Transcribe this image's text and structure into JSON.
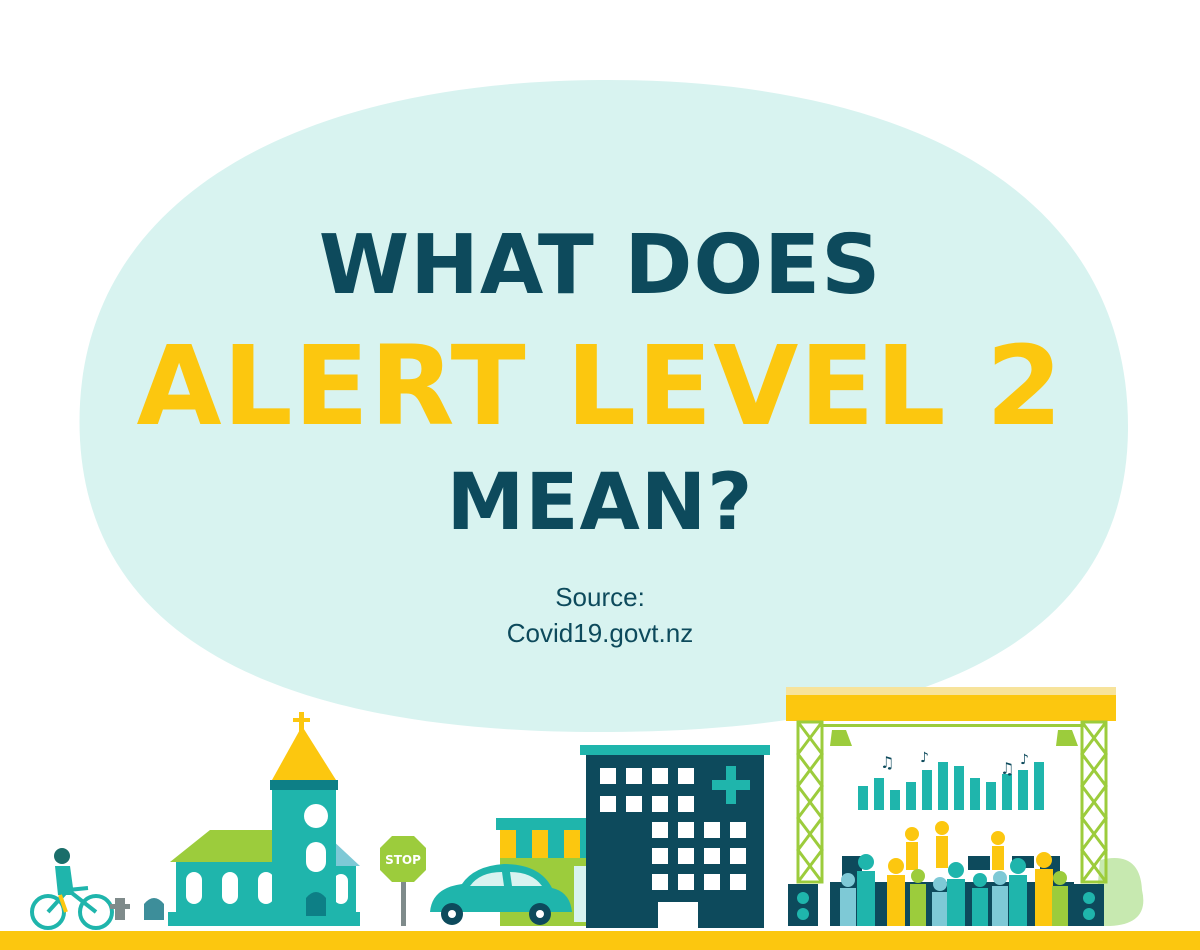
{
  "headline": {
    "line1": "WHAT DOES",
    "line2": "ALERT LEVEL 2",
    "line3": "MEAN?"
  },
  "source": {
    "label": "Source:",
    "value": "Covid19.govt.nz"
  },
  "signs": {
    "stop": "STOP"
  },
  "colors": {
    "navy": "#0d4a5c",
    "yellow": "#fcc70f",
    "teal": "#1fb5ac",
    "bubble": "#d8f3f0",
    "green": "#9ccc3c"
  }
}
